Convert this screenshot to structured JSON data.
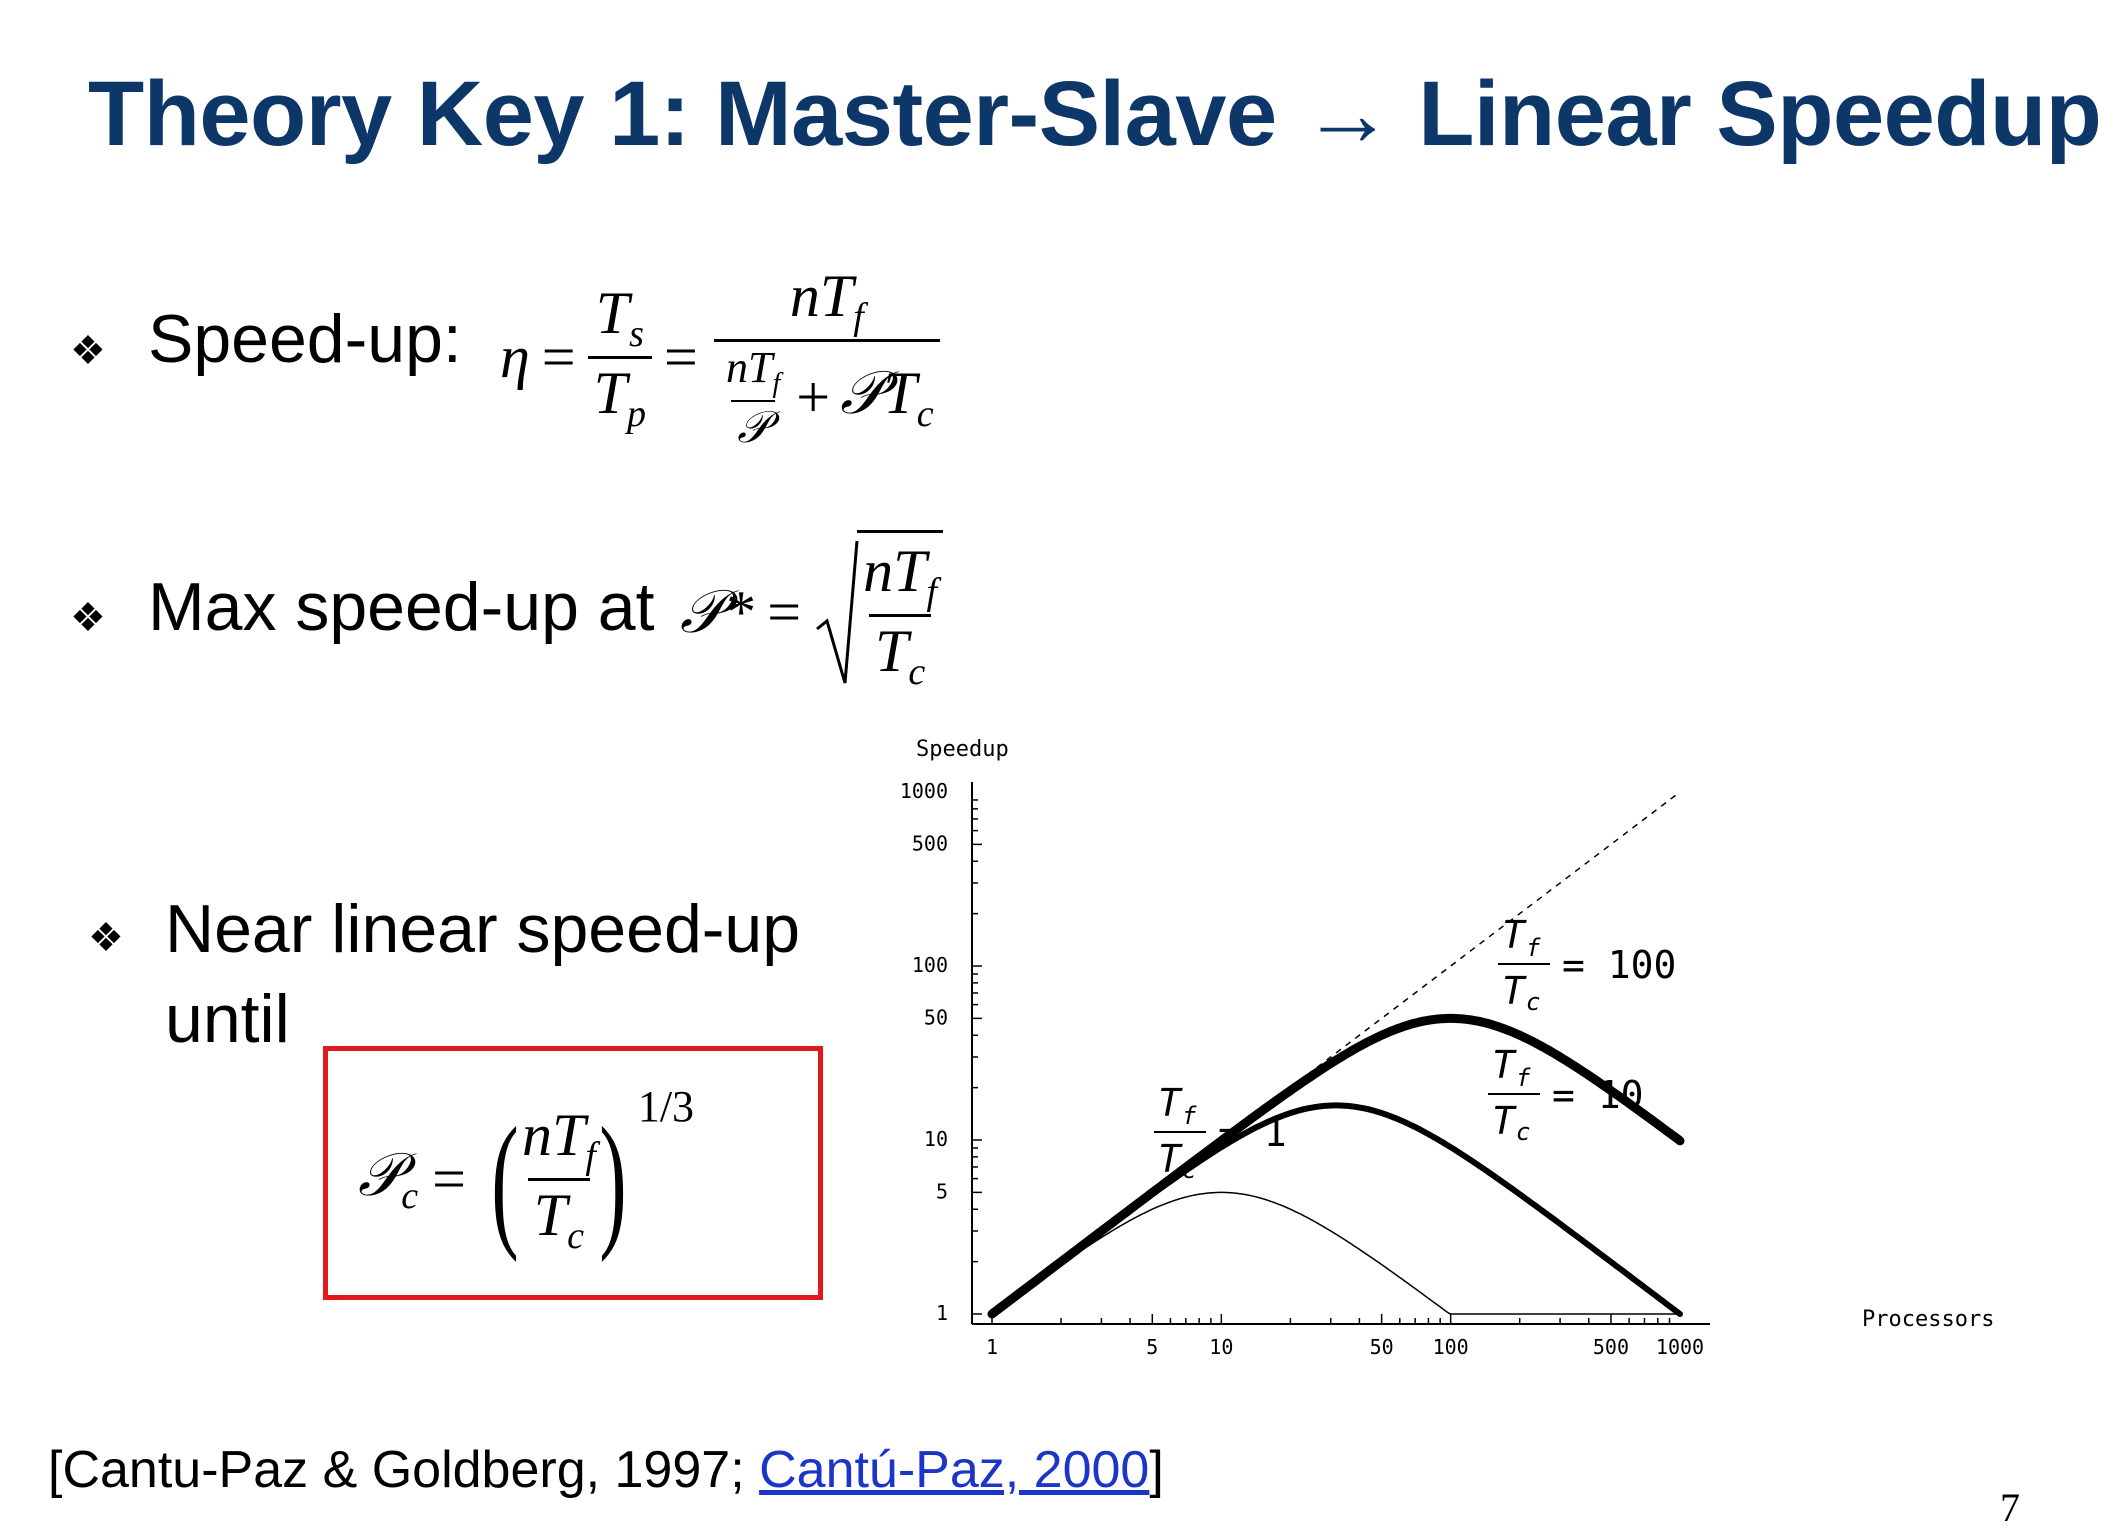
{
  "slide": {
    "title": "Theory Key 1: Master-Slave → Linear Speedup",
    "bullets": {
      "speedup_label": "Speed-up:",
      "max_label": "Max speed-up at",
      "near_label_line1": "Near linear speed-up",
      "near_label_line2": "until"
    },
    "bullet_glyph": "❖",
    "formulas": {
      "eta": "η",
      "eq": "=",
      "Ts": "T",
      "Ts_sub": "s",
      "Tp": "T",
      "Tp_sub": "p",
      "nTf": "nT",
      "f_sub": "f",
      "P": "𝒫",
      "plus": "+",
      "PTc": "𝒫T",
      "c_sub": "c",
      "Pstar": "𝒫*",
      "Pc": "𝒫",
      "exp": "1/3"
    },
    "citation": {
      "prefix": "[Cantu-Paz & Goldberg, 1997; ",
      "link": "Cantú-Paz, 2000",
      "suffix": "]"
    },
    "page_number": "7"
  },
  "chart_data": {
    "type": "line",
    "xscale": "log",
    "yscale": "log",
    "xlabel": "Processors",
    "ylabel": "Speedup",
    "xlim": [
      1,
      1000
    ],
    "ylim": [
      1,
      1000
    ],
    "x_ticks": [
      "1",
      "5",
      "10",
      "50",
      "100",
      "500",
      "1000"
    ],
    "y_ticks": [
      "1",
      "5",
      "10",
      "50",
      "100",
      "500",
      "1000"
    ],
    "series": [
      {
        "name": "Tf/Tc = 100",
        "label_lhs_num": "T",
        "label_lhs_den": "T",
        "label_num_sub": "f",
        "label_den_sub": "c",
        "label_rhs": "= 100",
        "ratio": 100,
        "style": "thick"
      },
      {
        "name": "Tf/Tc = 10",
        "label_lhs_num": "T",
        "label_lhs_den": "T",
        "label_num_sub": "f",
        "label_den_sub": "c",
        "label_rhs": "= 10",
        "ratio": 10,
        "style": "medium"
      },
      {
        "name": "Tf/Tc = 1",
        "label_lhs_num": "T",
        "label_lhs_den": "T",
        "label_num_sub": "f",
        "label_den_sub": "c",
        "label_rhs": "= 1",
        "ratio": 1,
        "style": "thin"
      }
    ],
    "reference": {
      "name": "linear",
      "style": "dashed"
    },
    "n": 1000
  }
}
